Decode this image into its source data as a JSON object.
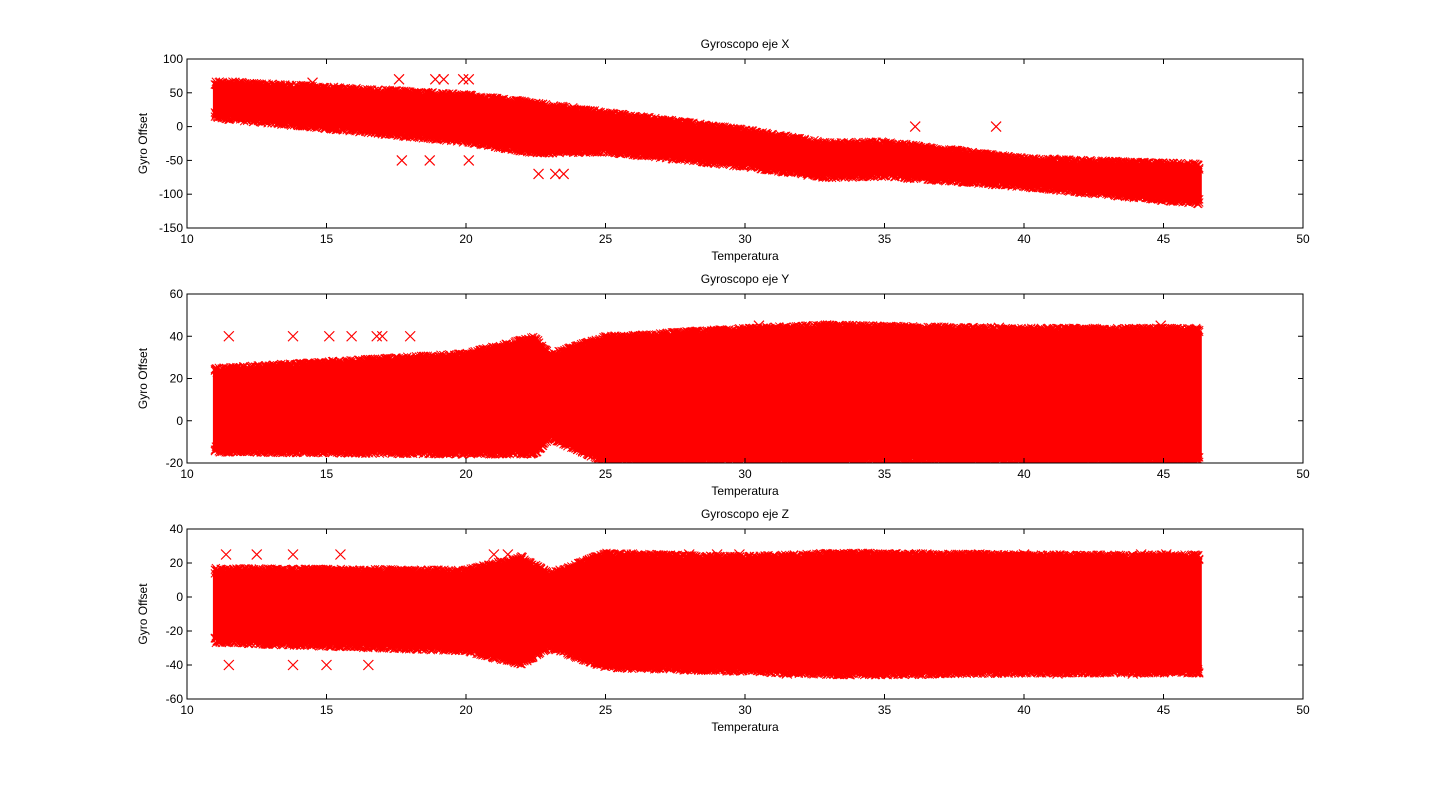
{
  "chart_data": [
    {
      "type": "scatter",
      "title": "Gyroscopo eje X",
      "xlabel": "Temperatura",
      "ylabel": "Gyro Offset",
      "xlim": [
        10,
        50
      ],
      "ylim": [
        -150,
        100
      ],
      "xticks": [
        "10",
        "15",
        "20",
        "25",
        "30",
        "35",
        "40",
        "45",
        "50"
      ],
      "yticks": [
        "-150",
        "-100",
        "-50",
        "0",
        "50",
        "100"
      ],
      "marker": "x",
      "color": "#ff0000",
      "x_range": [
        11,
        46.3
      ],
      "band_center": [
        [
          11,
          40
        ],
        [
          15,
          28
        ],
        [
          20,
          12
        ],
        [
          22.5,
          -2
        ],
        [
          25,
          -8
        ],
        [
          30,
          -32
        ],
        [
          33,
          -50
        ],
        [
          35,
          -48
        ],
        [
          40,
          -68
        ],
        [
          46.3,
          -85
        ]
      ],
      "band_halfwidth": [
        [
          11,
          28
        ],
        [
          22.5,
          38
        ],
        [
          25,
          30
        ],
        [
          30,
          28
        ],
        [
          35,
          26
        ],
        [
          40,
          22
        ],
        [
          46.3,
          30
        ]
      ],
      "outliers": [
        [
          17.6,
          70
        ],
        [
          18.9,
          70
        ],
        [
          19.2,
          70
        ],
        [
          19.9,
          70
        ],
        [
          20.1,
          70
        ],
        [
          14.5,
          65
        ],
        [
          36.1,
          0
        ],
        [
          39,
          0
        ],
        [
          17.7,
          -50
        ],
        [
          18.7,
          -50
        ],
        [
          20.1,
          -50
        ],
        [
          22.6,
          -70
        ],
        [
          23.2,
          -70
        ],
        [
          23.5,
          -70
        ]
      ]
    },
    {
      "type": "scatter",
      "title": "Gyroscopo eje Y",
      "xlabel": "Temperatura",
      "ylabel": "Gyro Offset",
      "xlim": [
        10,
        50
      ],
      "ylim": [
        -20,
        60
      ],
      "xticks": [
        "10",
        "15",
        "20",
        "25",
        "30",
        "35",
        "40",
        "45",
        "50"
      ],
      "yticks": [
        "-20",
        "0",
        "20",
        "40",
        "60"
      ],
      "marker": "x",
      "color": "#ff0000",
      "x_range": [
        11,
        46.3
      ],
      "band_center": [
        [
          11,
          5
        ],
        [
          20,
          8
        ],
        [
          22.5,
          12
        ],
        [
          25,
          10
        ],
        [
          30,
          12
        ],
        [
          35,
          13
        ],
        [
          40,
          12
        ],
        [
          46.3,
          12
        ]
      ],
      "band_halfwidth": [
        [
          11,
          20
        ],
        [
          20,
          24
        ],
        [
          22.5,
          28
        ],
        [
          23,
          20
        ],
        [
          25,
          30
        ],
        [
          30,
          32
        ],
        [
          33,
          33
        ],
        [
          35,
          32
        ],
        [
          40,
          32
        ],
        [
          46.3,
          32
        ]
      ],
      "outliers": [
        [
          11.5,
          40
        ],
        [
          13.8,
          40
        ],
        [
          15.1,
          40
        ],
        [
          15.9,
          40
        ],
        [
          16.8,
          40
        ],
        [
          17,
          40
        ],
        [
          18,
          40
        ],
        [
          30.5,
          45
        ],
        [
          31.1,
          44
        ],
        [
          32.9,
          45
        ],
        [
          34.4,
          44
        ],
        [
          39.1,
          44
        ],
        [
          44.9,
          45
        ]
      ]
    },
    {
      "type": "scatter",
      "title": "Gyroscopo eje Z",
      "xlabel": "Temperatura",
      "ylabel": "Gyro Offset",
      "xlim": [
        10,
        50
      ],
      "ylim": [
        -60,
        40
      ],
      "xticks": [
        "10",
        "15",
        "20",
        "25",
        "30",
        "35",
        "40",
        "45",
        "50"
      ],
      "yticks": [
        "-60",
        "-40",
        "-20",
        "0",
        "20",
        "40"
      ],
      "marker": "x",
      "color": "#ff0000",
      "x_range": [
        11,
        46.3
      ],
      "band_center": [
        [
          11,
          -5
        ],
        [
          20,
          -8
        ],
        [
          22.5,
          -8
        ],
        [
          23,
          -8
        ],
        [
          25,
          -8
        ],
        [
          30,
          -10
        ],
        [
          35,
          -10
        ],
        [
          40,
          -10
        ],
        [
          46.3,
          -10
        ]
      ],
      "band_halfwidth": [
        [
          11,
          22
        ],
        [
          20,
          24
        ],
        [
          22,
          32
        ],
        [
          23,
          22
        ],
        [
          25,
          34
        ],
        [
          30,
          34
        ],
        [
          33,
          36
        ],
        [
          35,
          36
        ],
        [
          40,
          35
        ],
        [
          46.3,
          35
        ]
      ],
      "outliers": [
        [
          11.4,
          25
        ],
        [
          12.5,
          25
        ],
        [
          13.8,
          25
        ],
        [
          15.5,
          25
        ],
        [
          21,
          25
        ],
        [
          21.5,
          25
        ],
        [
          28,
          25
        ],
        [
          29,
          25
        ],
        [
          29.8,
          25
        ],
        [
          36.5,
          25
        ],
        [
          38.4,
          25
        ],
        [
          40,
          25
        ],
        [
          44.2,
          25
        ],
        [
          45.1,
          25
        ],
        [
          11.5,
          -40
        ],
        [
          13.8,
          -40
        ],
        [
          15,
          -40
        ],
        [
          16.5,
          -40
        ],
        [
          31.5,
          -45
        ],
        [
          33,
          -45
        ],
        [
          41.2,
          -45
        ],
        [
          43.9,
          -45
        ]
      ]
    }
  ]
}
